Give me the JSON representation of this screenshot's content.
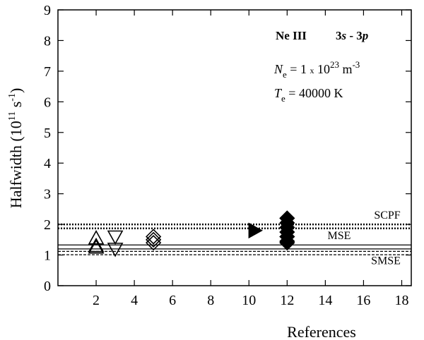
{
  "chart_data": {
    "type": "scatter",
    "x_label": "References",
    "y_label": [
      "Halfwidth  (10",
      "11",
      " s",
      "-1",
      ")"
    ],
    "xlim": [
      0,
      18.5
    ],
    "ylim": [
      0,
      9
    ],
    "xticks": [
      2,
      4,
      6,
      8,
      10,
      12,
      14,
      16,
      18
    ],
    "yticks": [
      0,
      1,
      2,
      3,
      4,
      5,
      6,
      7,
      8,
      9
    ],
    "annotations": {
      "ion": "Ne III",
      "transition": [
        "3",
        "s",
        " - 3",
        "p"
      ],
      "density": [
        "N",
        "e",
        " = 1 ",
        "x",
        " 10",
        "23",
        " m",
        "-3"
      ],
      "temperature": [
        "T",
        "e",
        " = 40000 K"
      ]
    },
    "series": [
      {
        "marker": "triangle-up",
        "filled": false,
        "x": [
          2,
          2,
          2
        ],
        "values": [
          1.55,
          1.3,
          1.25
        ]
      },
      {
        "marker": "triangle-down",
        "filled": false,
        "x": [
          3,
          3
        ],
        "values": [
          1.6,
          1.2
        ]
      },
      {
        "marker": "diamond",
        "filled": false,
        "x": [
          5,
          5,
          5
        ],
        "values": [
          1.6,
          1.5,
          1.4
        ]
      },
      {
        "marker": "triangle-right",
        "filled": true,
        "x": [
          10.3
        ],
        "values": [
          1.8
        ]
      },
      {
        "marker": "diamond",
        "filled": true,
        "x": [
          12,
          12,
          12,
          12,
          12,
          12,
          12
        ],
        "values": [
          2.2,
          2.05,
          1.9,
          1.75,
          1.6,
          1.45,
          1.4
        ]
      }
    ],
    "reference_lines": [
      {
        "label": "SCPF",
        "style": "dotted",
        "values": [
          2.0,
          1.87
        ]
      },
      {
        "label": "MSE",
        "style": "solid",
        "values": [
          1.33,
          1.2
        ]
      },
      {
        "label": "SMSE",
        "style": "dashed",
        "values": [
          1.12,
          1.01
        ]
      }
    ]
  }
}
